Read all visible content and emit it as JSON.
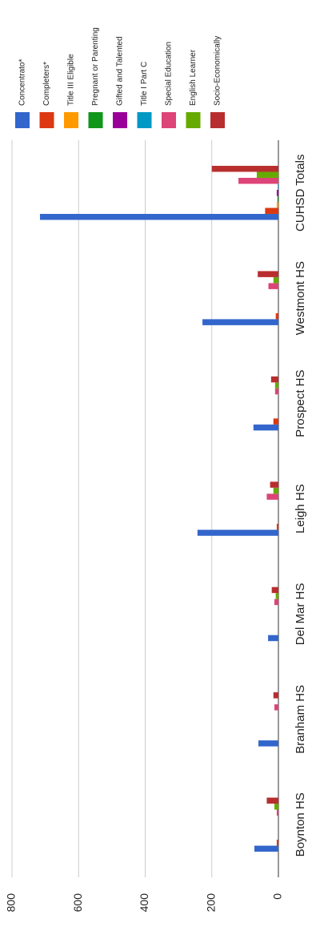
{
  "chart_data": {
    "type": "bar",
    "categories": [
      "Boynton HS",
      "Branham HS",
      "Del Mar HS",
      "Leigh HS",
      "Prospect HS",
      "Westmont HS",
      "CUHSD Totals"
    ],
    "series": [
      {
        "name": "Concentrato*",
        "color": "#3366cc",
        "values": [
          72,
          60,
          31,
          243,
          75,
          228,
          716
        ]
      },
      {
        "name": "Completers*",
        "color": "#dc3912",
        "values": [
          5,
          0,
          0,
          5,
          15,
          8,
          40
        ]
      },
      {
        "name": "Title III Eligible",
        "color": "#ff9900",
        "values": [
          0,
          0,
          0,
          0,
          0,
          0,
          5
        ]
      },
      {
        "name": "Pregnant or Parenting",
        "color": "#109618",
        "values": [
          0,
          0,
          0,
          0,
          0,
          0,
          3
        ]
      },
      {
        "name": "Gifted and Talented",
        "color": "#990099",
        "values": [
          0,
          0,
          0,
          0,
          0,
          0,
          5
        ]
      },
      {
        "name": "Title I Part C",
        "color": "#0099c6",
        "values": [
          0,
          0,
          0,
          0,
          0,
          0,
          2
        ]
      },
      {
        "name": "Special Education",
        "color": "#dd4477",
        "values": [
          5,
          12,
          12,
          35,
          10,
          30,
          120
        ]
      },
      {
        "name": "English Learner",
        "color": "#66aa00",
        "values": [
          12,
          0,
          8,
          15,
          10,
          15,
          65
        ]
      },
      {
        "name": "Socio-Economically",
        "color": "#b82e2e",
        "values": [
          35,
          15,
          20,
          25,
          22,
          62,
          200
        ]
      }
    ],
    "ylim": [
      0,
      800
    ],
    "yticks": [
      0,
      200,
      400,
      600,
      800
    ],
    "grid": true
  }
}
